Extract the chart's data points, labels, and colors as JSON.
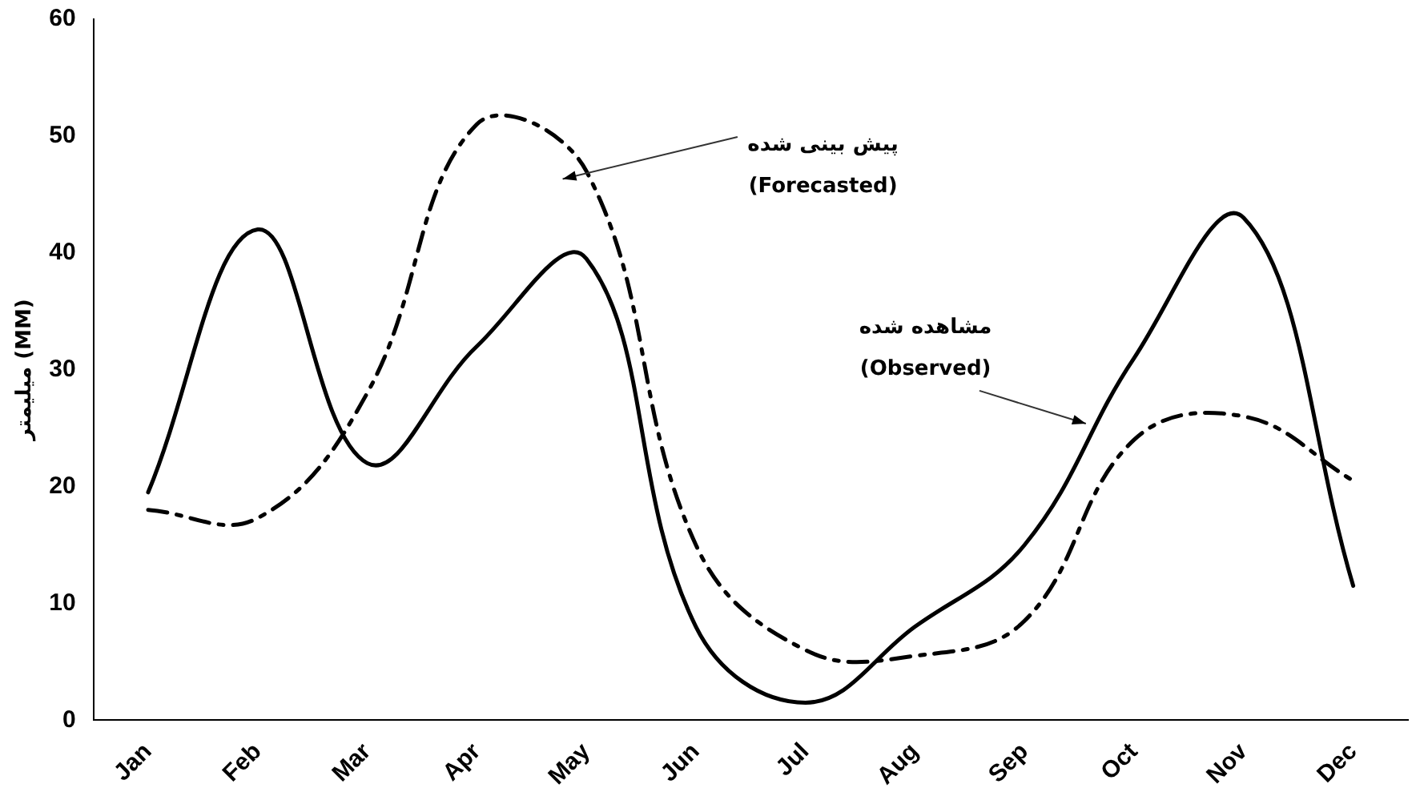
{
  "chart_data": {
    "type": "line",
    "ylabel": "میلیمتر (MM)",
    "categories": [
      "Jan",
      "Feb",
      "Mar",
      "Apr",
      "May",
      "Jun",
      "Jul",
      "Aug",
      "Sep",
      "Oct",
      "Nov",
      "Dec"
    ],
    "series": [
      {
        "color": "#000000",
        "line_style": "solid",
        "values": [
          19.5,
          42,
          22,
          32,
          39.5,
          8,
          1.5,
          8,
          15,
          31,
          43,
          11.5
        ]
      },
      {
        "color": "#000000",
        "line_style": "dashed",
        "values": [
          18,
          17.3,
          28,
          51,
          47,
          15,
          6,
          5.5,
          8.5,
          24,
          26,
          20.5
        ]
      }
    ],
    "ylim": [
      0,
      60
    ],
    "yticks": [
      0,
      10,
      20,
      30,
      40,
      50,
      60
    ],
    "grid": false,
    "legend": false,
    "marker": "none",
    "annotations": [
      "پیش بینی شده\n(Forecasted)",
      "مشاهده شده\n(Observed)"
    ]
  }
}
